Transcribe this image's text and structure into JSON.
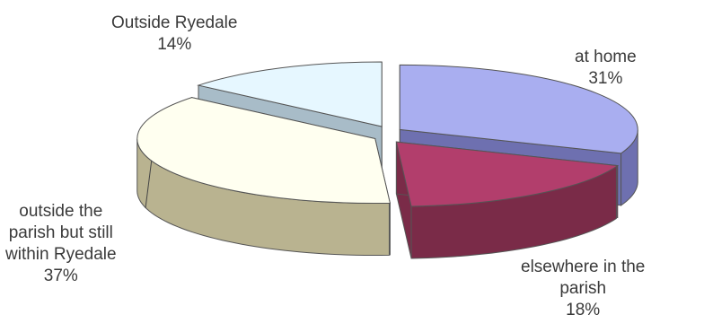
{
  "chart_data": {
    "type": "pie",
    "style": "3d-exploded",
    "title": "",
    "slices": [
      {
        "label": "at home",
        "label_lines": [
          "at home"
        ],
        "value": 31,
        "value_label": "31%",
        "top_color": "#a9aef0",
        "side_color": "#6e70b0"
      },
      {
        "label": "elsewhere in the parish",
        "label_lines": [
          "elsewhere in the",
          "parish"
        ],
        "value": 18,
        "value_label": "18%",
        "top_color": "#b23e6c",
        "side_color": "#7a2b48"
      },
      {
        "label": "outside the parish but still within Ryedale",
        "label_lines": [
          "outside the",
          "parish but still",
          "within Ryedale"
        ],
        "value": 37,
        "value_label": "37%",
        "top_color": "#fffff0",
        "side_color": "#b9b390"
      },
      {
        "label": "Outside Ryedale",
        "label_lines": [
          "Outside Ryedale"
        ],
        "value": 14,
        "value_label": "14%",
        "top_color": "#e6f7ff",
        "side_color": "#a8bcc8"
      }
    ],
    "legend": "none",
    "edge_color": "#555555"
  }
}
